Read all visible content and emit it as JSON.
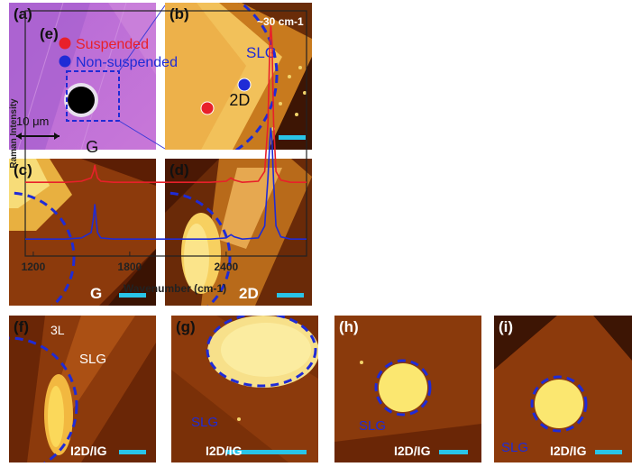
{
  "figure": {
    "panels": {
      "a": {
        "label": "(a)",
        "scale": "10 μm"
      },
      "b": {
        "label": "(b)",
        "note": "~30 cm-1",
        "tag": "SLG"
      },
      "c": {
        "label": "(c)",
        "map": "G"
      },
      "d": {
        "label": "(d)",
        "map": "2D"
      },
      "e": {
        "label": "(e)"
      },
      "f": {
        "label": "(f)",
        "tag_3l": "3L",
        "tag_slg": "SLG",
        "map": "I2D/IG"
      },
      "g": {
        "label": "(g)",
        "tag": "SLG",
        "map": "I2D/IG"
      },
      "h": {
        "label": "(h)",
        "tag": "SLG",
        "map": "I2D/IG"
      },
      "i": {
        "label": "(i)",
        "tag": "SLG",
        "map": "I2D/IG"
      }
    }
  },
  "colors": {
    "suspended": "#e8202a",
    "non_suspended": "#1f2bd6",
    "circle": "#1f2bd6",
    "scalebar": "#29c4e8"
  },
  "chart_data": {
    "type": "line",
    "xlabel": "Wavenumber (cm-1)",
    "ylabel": "Raman Intensity",
    "x_ticks": [
      1200,
      1800,
      2400
    ],
    "xlim": [
      1150,
      2900
    ],
    "peak_labels": [
      "G",
      "2D"
    ],
    "series": [
      {
        "name": "Suspended",
        "color": "#e8202a",
        "x": [
          1150,
          1400,
          1500,
          1560,
          1575,
          1583,
          1590,
          1600,
          1620,
          1700,
          2000,
          2300,
          2400,
          2430,
          2450,
          2500,
          2600,
          2640,
          2660,
          2672,
          2678,
          2685,
          2695,
          2710,
          2740,
          2800,
          2900
        ],
        "y": [
          0.28,
          0.28,
          0.285,
          0.3,
          0.33,
          0.36,
          0.33,
          0.3,
          0.285,
          0.28,
          0.28,
          0.28,
          0.285,
          0.3,
          0.29,
          0.28,
          0.285,
          0.33,
          0.55,
          0.93,
          1.0,
          0.92,
          0.55,
          0.33,
          0.29,
          0.28,
          0.28
        ]
      },
      {
        "name": "Non-suspended",
        "color": "#1f2bd6",
        "x": [
          1150,
          1400,
          1500,
          1560,
          1575,
          1583,
          1590,
          1600,
          1620,
          1700,
          2000,
          2300,
          2400,
          2430,
          2450,
          2500,
          2600,
          2640,
          2660,
          2672,
          2678,
          2685,
          2695,
          2710,
          2740,
          2800,
          2900
        ],
        "y": [
          0.02,
          0.02,
          0.025,
          0.05,
          0.12,
          0.18,
          0.12,
          0.05,
          0.025,
          0.02,
          0.02,
          0.02,
          0.025,
          0.04,
          0.03,
          0.02,
          0.025,
          0.08,
          0.3,
          0.48,
          0.53,
          0.47,
          0.28,
          0.08,
          0.03,
          0.02,
          0.02
        ]
      }
    ]
  }
}
